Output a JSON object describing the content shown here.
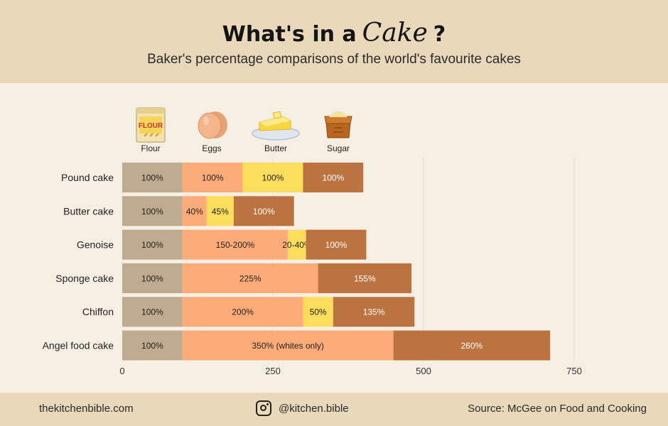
{
  "header": {
    "title_before": "What's in a",
    "title_cake": "Cake",
    "title_after": "?",
    "subtitle": "Baker's percentage comparisons of the world's favourite cakes"
  },
  "ingredients": [
    {
      "name": "Flour",
      "icon": "flour-bag-icon",
      "color": "#bfab8f"
    },
    {
      "name": "Eggs",
      "icon": "egg-icon",
      "color": "#fdab78"
    },
    {
      "name": "Butter",
      "icon": "butter-dish-icon",
      "color": "#fdde5c"
    },
    {
      "name": "Sugar",
      "icon": "sugar-sack-icon",
      "color": "#bb733f"
    }
  ],
  "chart_data": {
    "type": "bar",
    "orientation": "horizontal",
    "stacked": true,
    "categories": [
      "Pound cake",
      "Butter cake",
      "Genoise",
      "Sponge cake",
      "Chiffon",
      "Angel food cake"
    ],
    "series": [
      {
        "name": "Flour",
        "color": "#bfab8f",
        "values": [
          100,
          100,
          100,
          100,
          100,
          100
        ],
        "labels": [
          "100%",
          "100%",
          "100%",
          "100%",
          "100%",
          "100%"
        ]
      },
      {
        "name": "Eggs",
        "color": "#fdab78",
        "values": [
          100,
          40,
          175,
          225,
          200,
          350
        ],
        "labels": [
          "100%",
          "40%",
          "150-200%",
          "225%",
          "200%",
          "350% (whites only)"
        ]
      },
      {
        "name": "Butter",
        "color": "#fdde5c",
        "values": [
          100,
          45,
          30,
          0,
          50,
          0
        ],
        "labels": [
          "100%",
          "45%",
          "20-40%",
          "",
          "50%",
          ""
        ]
      },
      {
        "name": "Sugar",
        "color": "#bb733f",
        "values": [
          100,
          100,
          100,
          155,
          135,
          260
        ],
        "labels": [
          "100%",
          "100%",
          "100%",
          "155%",
          "135%",
          "260%"
        ]
      }
    ],
    "xticks": [
      0,
      250,
      500,
      750
    ],
    "xtick_labels": [
      "0",
      "250",
      "500",
      "750"
    ],
    "xlim": [
      0,
      750
    ],
    "grid": true,
    "legend": "top, icons above bars"
  },
  "footer": {
    "website": "thekitchenbible.com",
    "instagram_icon": "instagram-icon",
    "instagram": "@kitchen.bible",
    "source": "Source: McGee on Food and Cooking"
  }
}
